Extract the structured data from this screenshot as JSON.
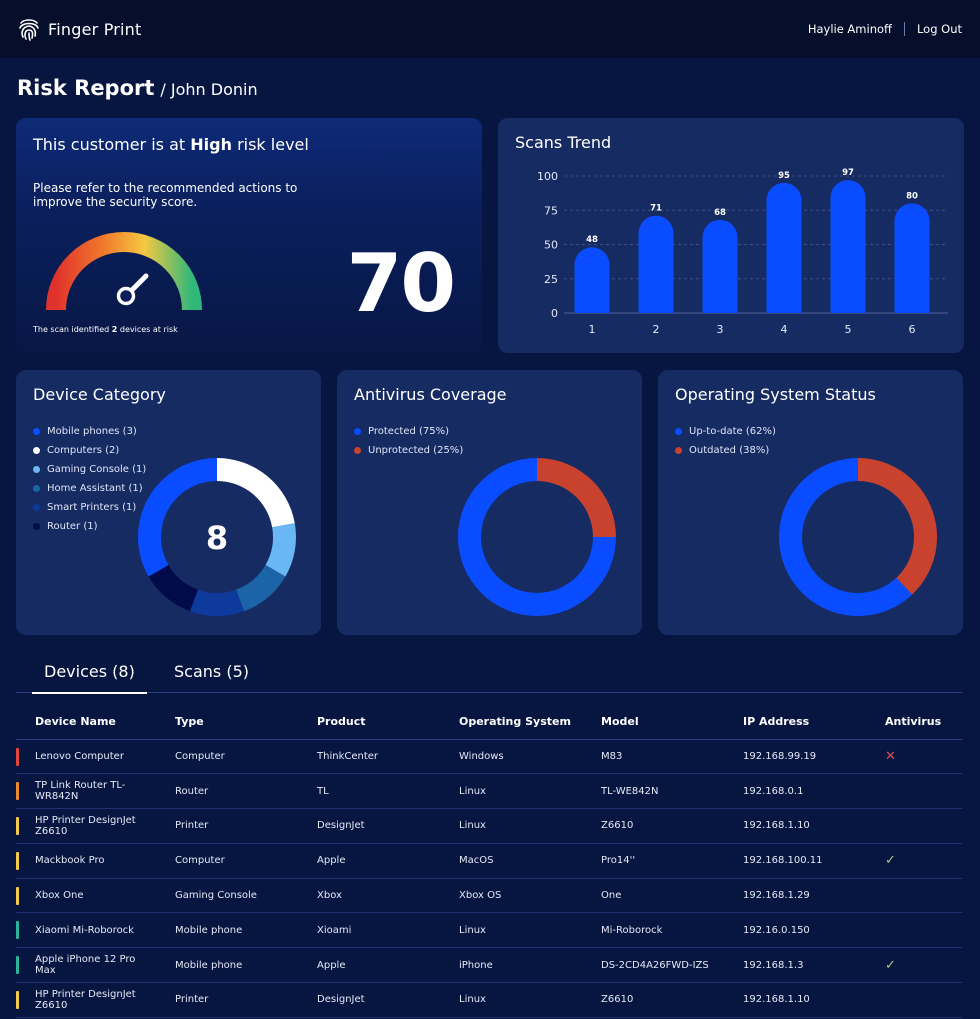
{
  "header": {
    "brand": "Finger Print",
    "user_name": "Haylie Aminoff",
    "logout": "Log Out"
  },
  "page": {
    "title": "Risk Report",
    "subtitle": "/ John Donin"
  },
  "risk": {
    "heading_prefix": "This customer is at",
    "level": "High",
    "heading_suffix": "risk level",
    "description": "Please refer to the recommended actions to improve the security score.",
    "note_prefix": "The scan identified",
    "devices_at_risk": "2",
    "note_suffix": "devices at risk",
    "score": "70"
  },
  "scans_trend": {
    "title": "Scans Trend",
    "chart_data": {
      "type": "bar",
      "title": "Scans Trend",
      "categories": [
        "1",
        "2",
        "3",
        "4",
        "5",
        "6"
      ],
      "values": [
        48,
        71,
        68,
        95,
        97,
        80
      ],
      "yticks": [
        "0",
        "25",
        "50",
        "75",
        "100"
      ],
      "ylim": [
        0,
        100
      ],
      "grid": true,
      "color": "#0a4cff"
    }
  },
  "device_category": {
    "title": "Device Category",
    "total": "8",
    "items": [
      {
        "label": "Mobile phones (3)",
        "value": 3,
        "color": "#0a4cff"
      },
      {
        "label": "Computers (2)",
        "value": 2,
        "color": "#ffffff"
      },
      {
        "label": "Gaming Console (1)",
        "value": 1,
        "color": "#6ab7f5"
      },
      {
        "label": "Home Assistant (1)",
        "value": 1,
        "color": "#1b64a8"
      },
      {
        "label": "Smart Printers (1)",
        "value": 1,
        "color": "#0d3a9c"
      },
      {
        "label": "Router (1)",
        "value": 1,
        "color": "#020b4a"
      }
    ]
  },
  "antivirus": {
    "title": "Antivirus Coverage",
    "items": [
      {
        "label": "Protected (75%)",
        "value": 75,
        "color": "#0a4cff"
      },
      {
        "label": "Unprotected (25%)",
        "value": 25,
        "color": "#c8422d"
      }
    ]
  },
  "os_status": {
    "title": "Operating System Status",
    "items": [
      {
        "label": "Up-to-date (62%)",
        "value": 62,
        "color": "#0a4cff"
      },
      {
        "label": "Outdated (38%)",
        "value": 38,
        "color": "#c8422d"
      }
    ]
  },
  "tabs": {
    "devices": "Devices (8)",
    "scans": "Scans (5)"
  },
  "table": {
    "headers": [
      "Device Name",
      "Type",
      "Product",
      "Operating System",
      "Model",
      "IP Address",
      "Antivirus"
    ],
    "rows": [
      {
        "name": "Lenovo Computer",
        "type": "Computer",
        "product": "ThinkCenter",
        "os": "Windows",
        "model": "M83",
        "ip": "192.168.99.19",
        "antivirus": "✕",
        "flag": "#e2463a"
      },
      {
        "name": "TP Link Router TL-WR842N",
        "type": "Router",
        "product": "TL",
        "os": "Linux",
        "model": "TL-WE842N",
        "ip": "192.168.0.1",
        "antivirus": "",
        "flag": "#ee8a2e"
      },
      {
        "name": "HP Printer DesignJet Z6610",
        "type": "Printer",
        "product": "DesignJet",
        "os": "Linux",
        "model": "Z6610",
        "ip": "192.168.1.10",
        "antivirus": "",
        "flag": "#f2c94c"
      },
      {
        "name": "Mackbook Pro",
        "type": "Computer",
        "product": "Apple",
        "os": "MacOS",
        "model": "Pro14''",
        "ip": "192.168.100.11",
        "antivirus": "✓",
        "flag": "#f2c94c"
      },
      {
        "name": "Xbox One",
        "type": "Gaming Console",
        "product": "Xbox",
        "os": "Xbox OS",
        "model": "One",
        "ip": "192.168.1.29",
        "antivirus": "",
        "flag": "#f2c94c"
      },
      {
        "name": "Xiaomi Mi-Roborock",
        "type": "Mobile phone",
        "product": "Xioami",
        "os": "Linux",
        "model": "Mi-Roborock",
        "ip": "192.16.0.150",
        "antivirus": "",
        "flag": "#2bb39a"
      },
      {
        "name": "Apple iPhone 12 Pro Max",
        "type": "Mobile phone",
        "product": "Apple",
        "os": "iPhone",
        "model": "DS-2CD4A26FWD-IZS",
        "ip": "192.168.1.3",
        "antivirus": "✓",
        "flag": "#2bb39a"
      },
      {
        "name": "HP Printer DesignJet Z6610",
        "type": "Printer",
        "product": "DesignJet",
        "os": "Linux",
        "model": "Z6610",
        "ip": "192.168.1.10",
        "antivirus": "",
        "flag": "#f2c94c"
      }
    ]
  }
}
